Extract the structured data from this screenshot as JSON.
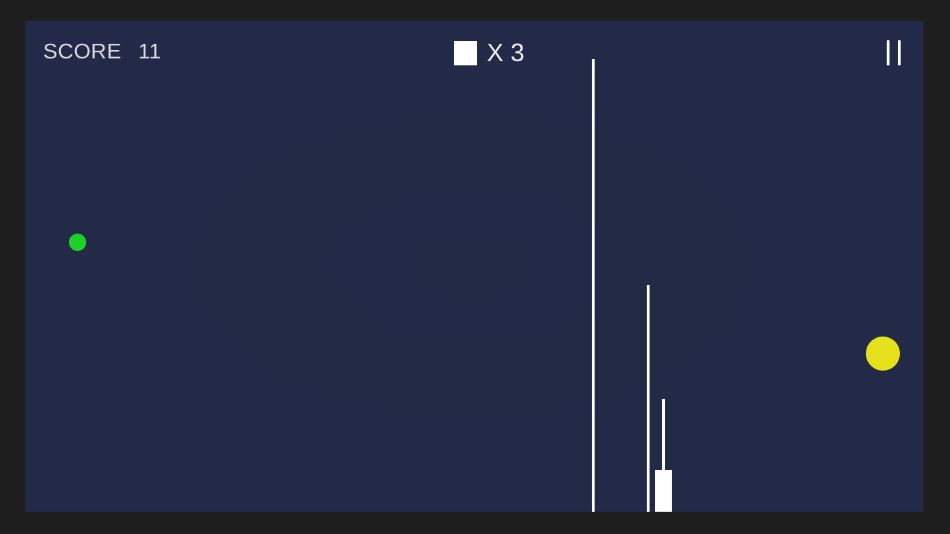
{
  "hud": {
    "score_label": "SCORE",
    "score_value": "11",
    "lives_prefix": "X",
    "lives_value": "3",
    "pause_icon": "pause-icon"
  },
  "game": {
    "player_color": "#1fcf2a",
    "target_color": "#e5e21c",
    "background_color": "#222a47",
    "obstacle_color": "#ffffff"
  }
}
